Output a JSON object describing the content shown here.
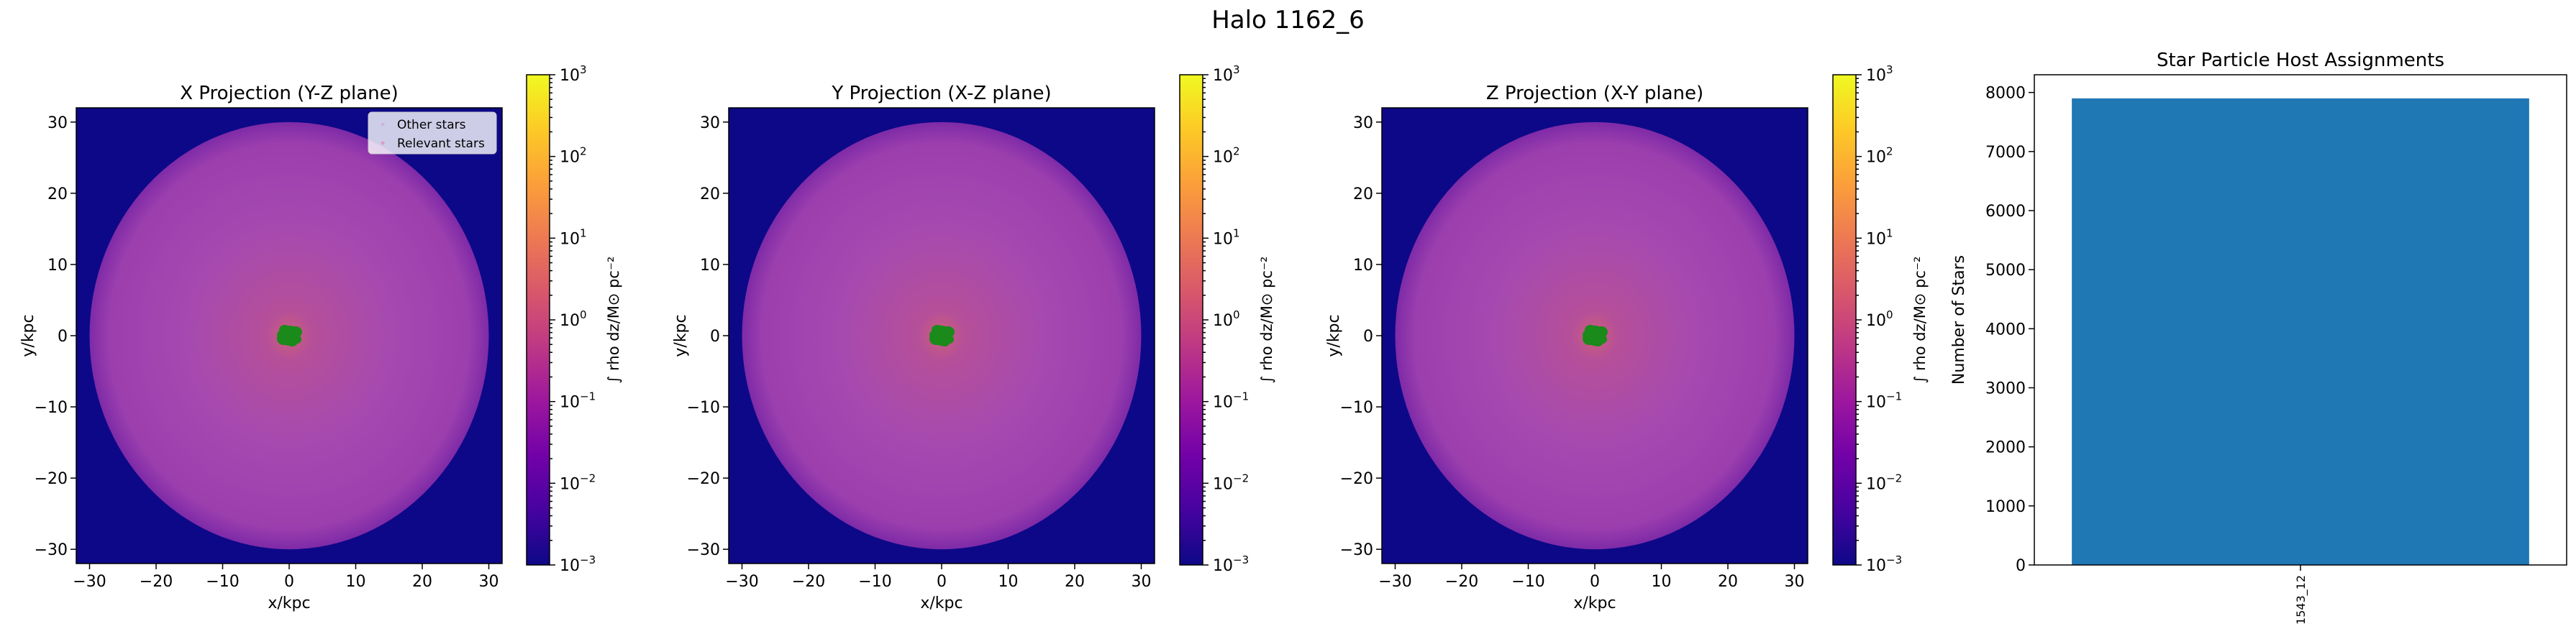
{
  "figure": {
    "suptitle": "Halo 1162_6"
  },
  "colors": {
    "background_fill": "#0d0887",
    "colormap": [
      "#0d0887",
      "#46039f",
      "#7201a8",
      "#9c179e",
      "#bd3786",
      "#d8576b",
      "#ed7953",
      "#fb9f3a",
      "#fdca26",
      "#f0f921"
    ],
    "halo_glow_outer": "#a64ab0",
    "halo_glow_center": "#cc5f7a",
    "star_marker": "#1a8a1a",
    "bar_fill": "#1f77b4"
  },
  "chart_data": [
    {
      "type": "heatmap",
      "title": "X Projection (Y-Z plane)",
      "xlabel": "x/kpc",
      "ylabel": "y/kpc",
      "xlim": [
        -32,
        32
      ],
      "ylim": [
        -32,
        32
      ],
      "xticks": [
        -30,
        -20,
        -10,
        0,
        10,
        20,
        30
      ],
      "yticks": [
        -30,
        -20,
        -10,
        0,
        10,
        20,
        30
      ],
      "xtick_labels": [
        "−30",
        "−20",
        "−10",
        "0",
        "10",
        "20",
        "30"
      ],
      "ytick_labels": [
        "−30",
        "−20",
        "−10",
        "0",
        "10",
        "20",
        "30"
      ],
      "halo_radius_kpc": 30,
      "star_cluster_center_kpc": [
        0,
        0
      ],
      "colorbar": {
        "label": "∫ rho dz/M⊙ pc⁻²",
        "scale": "log",
        "range": [
          0.001,
          1000
        ],
        "tick_values": [
          0.001,
          0.01,
          0.1,
          1,
          10,
          100,
          1000
        ],
        "tick_labels": [
          {
            "base": "10",
            "exp": "−3"
          },
          {
            "base": "10",
            "exp": "−2"
          },
          {
            "base": "10",
            "exp": "−1"
          },
          {
            "base": "10",
            "exp": "0"
          },
          {
            "base": "10",
            "exp": "1"
          },
          {
            "base": "10",
            "exp": "2"
          },
          {
            "base": "10",
            "exp": "3"
          }
        ]
      },
      "legend": {
        "placement": "upper right",
        "entries": [
          "Other stars",
          "Relevant stars"
        ]
      }
    },
    {
      "type": "heatmap",
      "title": "Y Projection (X-Z plane)",
      "xlabel": "x/kpc",
      "ylabel": "y/kpc",
      "xlim": [
        -32,
        32
      ],
      "ylim": [
        -32,
        32
      ],
      "xticks": [
        -30,
        -20,
        -10,
        0,
        10,
        20,
        30
      ],
      "yticks": [
        -30,
        -20,
        -10,
        0,
        10,
        20,
        30
      ],
      "xtick_labels": [
        "−30",
        "−20",
        "−10",
        "0",
        "10",
        "20",
        "30"
      ],
      "ytick_labels": [
        "−30",
        "−20",
        "−10",
        "0",
        "10",
        "20",
        "30"
      ],
      "halo_radius_kpc": 30,
      "star_cluster_center_kpc": [
        0,
        0
      ],
      "colorbar": {
        "label": "∫ rho dz/M⊙ pc⁻²",
        "scale": "log",
        "range": [
          0.001,
          1000
        ],
        "tick_values": [
          0.001,
          0.01,
          0.1,
          1,
          10,
          100,
          1000
        ],
        "tick_labels": [
          {
            "base": "10",
            "exp": "−3"
          },
          {
            "base": "10",
            "exp": "−2"
          },
          {
            "base": "10",
            "exp": "−1"
          },
          {
            "base": "10",
            "exp": "0"
          },
          {
            "base": "10",
            "exp": "1"
          },
          {
            "base": "10",
            "exp": "2"
          },
          {
            "base": "10",
            "exp": "3"
          }
        ]
      }
    },
    {
      "type": "heatmap",
      "title": "Z Projection (X-Y plane)",
      "xlabel": "x/kpc",
      "ylabel": "y/kpc",
      "xlim": [
        -32,
        32
      ],
      "ylim": [
        -32,
        32
      ],
      "xticks": [
        -30,
        -20,
        -10,
        0,
        10,
        20,
        30
      ],
      "yticks": [
        -30,
        -20,
        -10,
        0,
        10,
        20,
        30
      ],
      "xtick_labels": [
        "−30",
        "−20",
        "−10",
        "0",
        "10",
        "20",
        "30"
      ],
      "ytick_labels": [
        "−30",
        "−20",
        "−10",
        "0",
        "10",
        "20",
        "30"
      ],
      "halo_radius_kpc": 30,
      "star_cluster_center_kpc": [
        0,
        0
      ],
      "colorbar": {
        "label": "∫ rho dz/M⊙ pc⁻²",
        "scale": "log",
        "range": [
          0.001,
          1000
        ],
        "tick_values": [
          0.001,
          0.01,
          0.1,
          1,
          10,
          100,
          1000
        ],
        "tick_labels": [
          {
            "base": "10",
            "exp": "−3"
          },
          {
            "base": "10",
            "exp": "−2"
          },
          {
            "base": "10",
            "exp": "−1"
          },
          {
            "base": "10",
            "exp": "0"
          },
          {
            "base": "10",
            "exp": "1"
          },
          {
            "base": "10",
            "exp": "2"
          },
          {
            "base": "10",
            "exp": "3"
          }
        ]
      }
    },
    {
      "type": "bar",
      "title": "Star Particle Host Assignments",
      "xlabel": "",
      "ylabel": "Number of Stars",
      "categories": [
        "1543_12"
      ],
      "values": [
        7900
      ],
      "ylim": [
        0,
        8300
      ],
      "yticks": [
        0,
        1000,
        2000,
        3000,
        4000,
        5000,
        6000,
        7000,
        8000
      ],
      "ytick_labels": [
        "0",
        "1000",
        "2000",
        "3000",
        "4000",
        "5000",
        "6000",
        "7000",
        "8000"
      ]
    }
  ]
}
